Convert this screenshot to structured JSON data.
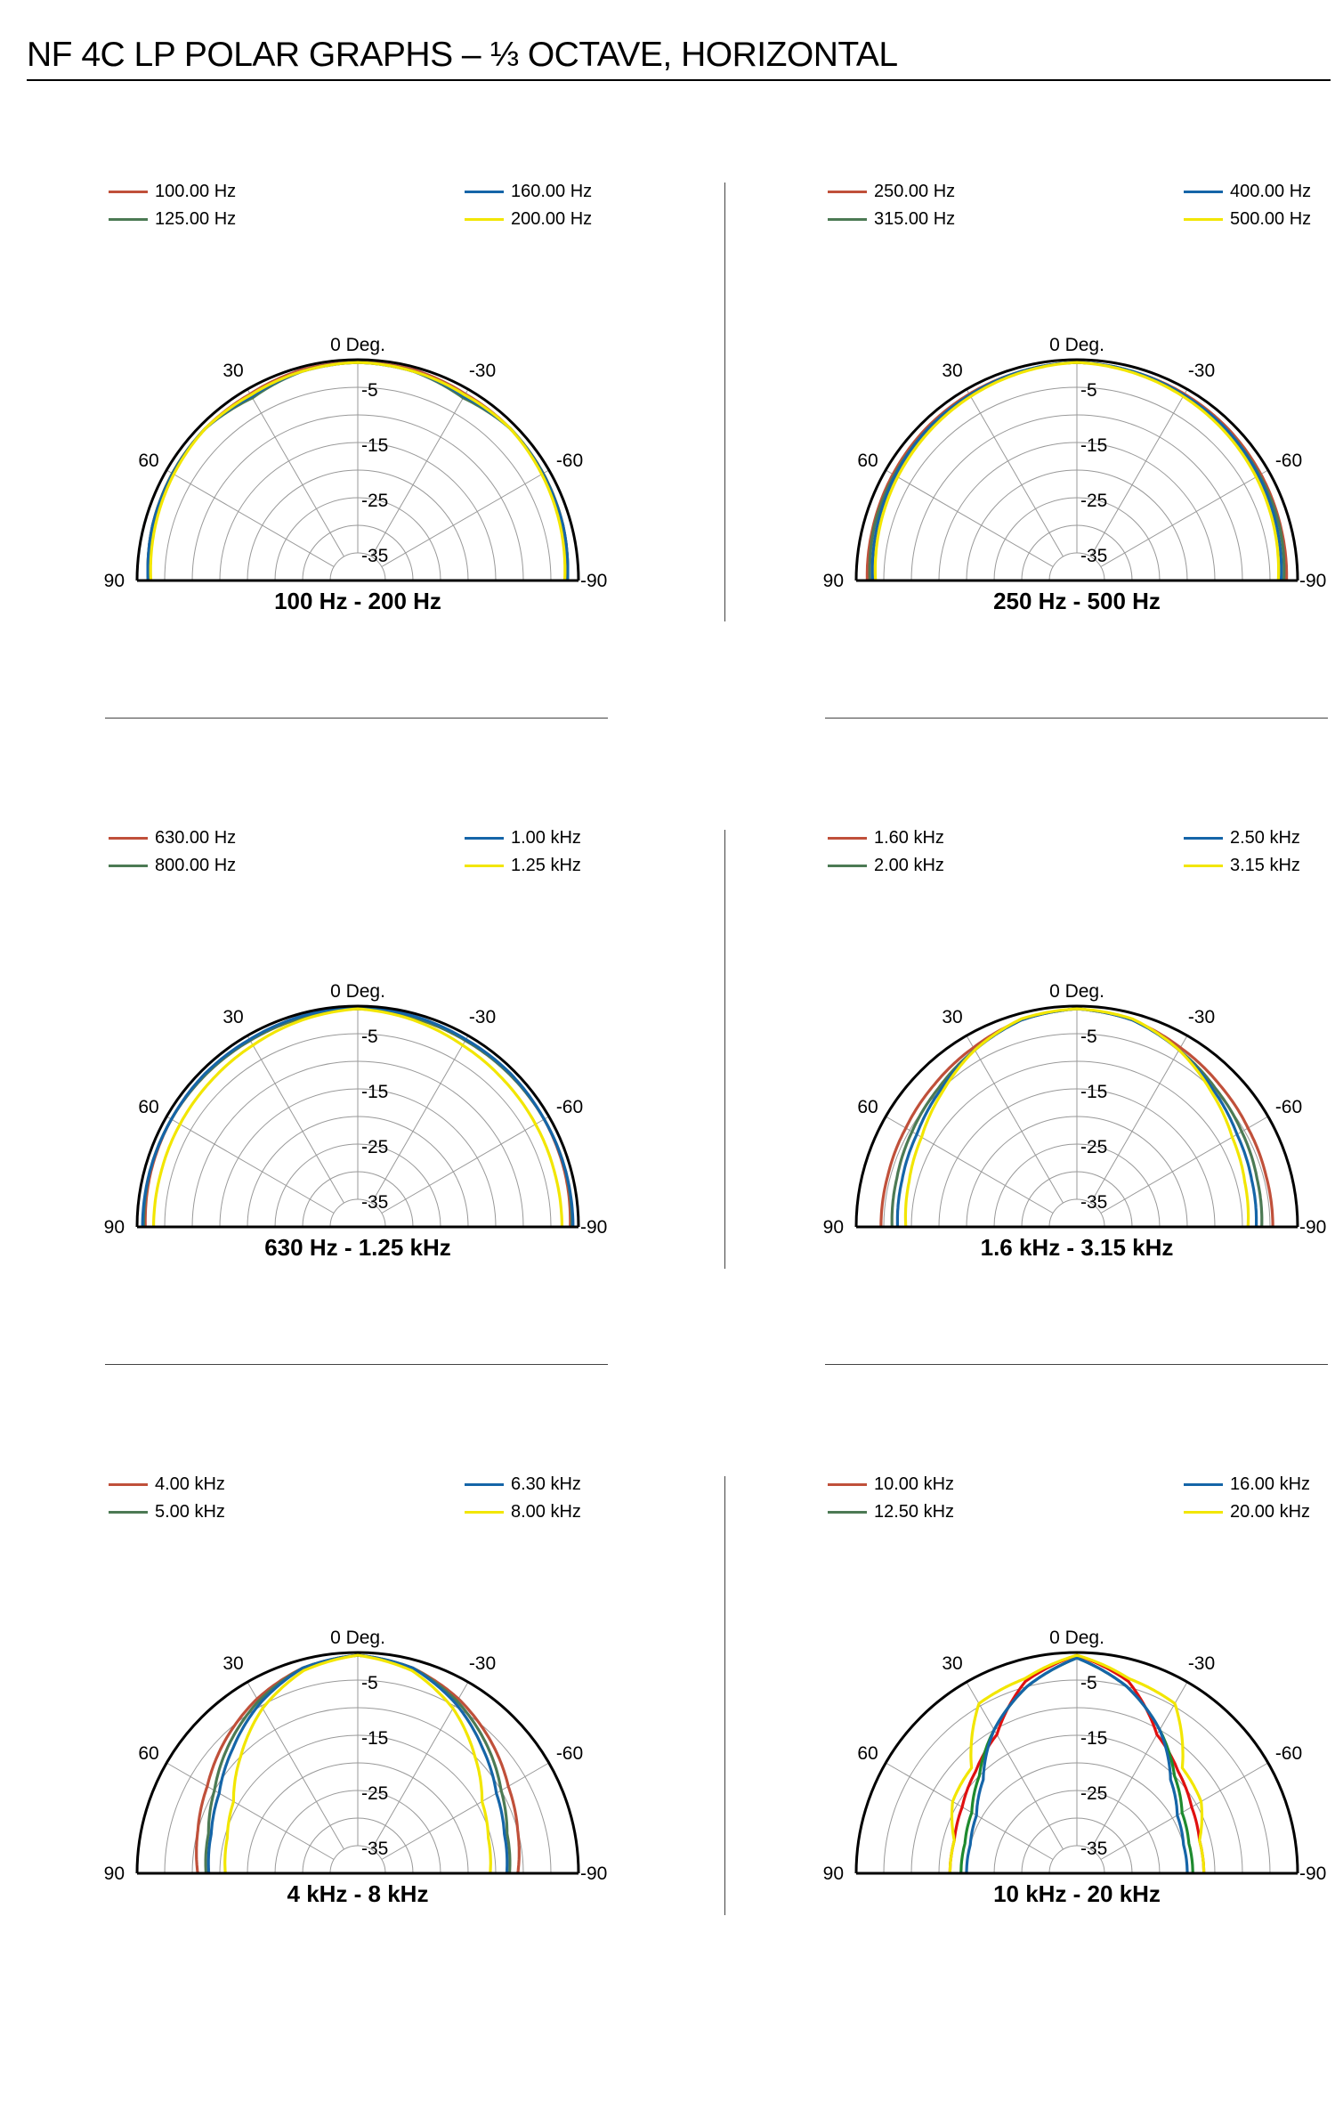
{
  "page": {
    "title": "NF 4C LP POLAR GRAPHS – ⅓ OCTAVE, HORIZONTAL"
  },
  "colors": {
    "series1": "#c0503a",
    "series2": "#4c7a54",
    "series3": "#1565a8",
    "series4": "#f2e600",
    "grid": "#999999",
    "outline": "#000000",
    "hf_red": "#e01010",
    "hf_green": "#1e8a2e"
  },
  "chart_data": [
    {
      "type": "polar",
      "subtitle": "100 Hz - 200 Hz",
      "angle_labels": {
        "top": "0 Deg.",
        "a30": "30",
        "am30": "-30",
        "a60": "60",
        "am60": "-60",
        "a90": "90",
        "am90": "-90"
      },
      "ring_labels": [
        "-5",
        "-15",
        "-25",
        "-35"
      ],
      "rlim": [
        -40,
        0
      ],
      "angles": [
        -90,
        -75,
        -60,
        -45,
        -30,
        -15,
        0,
        15,
        30,
        45,
        60,
        75,
        90
      ],
      "series": [
        {
          "name": "100.00 Hz",
          "values": [
            -2,
            -1.5,
            -1.2,
            -1,
            -1,
            -0.5,
            -0.5,
            -0.5,
            -1,
            -1,
            -1.2,
            -1.5,
            -2
          ]
        },
        {
          "name": "125.00 Hz",
          "values": [
            -2,
            -1.5,
            -1.2,
            -1,
            -1.8,
            -0.8,
            -0.5,
            -0.8,
            -1.8,
            -1,
            -1.2,
            -1.5,
            -2
          ]
        },
        {
          "name": "160.00 Hz",
          "values": [
            -2,
            -1.5,
            -1.3,
            -1,
            -1.5,
            -0.8,
            -0.5,
            -0.8,
            -1.5,
            -1,
            -1.3,
            -1.5,
            -2
          ]
        },
        {
          "name": "200.00 Hz",
          "values": [
            -2.5,
            -2,
            -1.5,
            -1,
            -1.2,
            -0.8,
            -0.5,
            -0.8,
            -1.2,
            -1,
            -1.5,
            -2,
            -2.5
          ]
        }
      ]
    },
    {
      "type": "polar",
      "subtitle": "250 Hz - 500 Hz",
      "angle_labels": {
        "top": "0 Deg.",
        "a30": "30",
        "am30": "-30",
        "a60": "60",
        "am60": "-60",
        "a90": "90",
        "am90": "-90"
      },
      "ring_labels": [
        "-5",
        "-15",
        "-25",
        "-35"
      ],
      "rlim": [
        -40,
        0
      ],
      "angles": [
        -90,
        -75,
        -60,
        -45,
        -30,
        -15,
        0,
        15,
        30,
        45,
        60,
        75,
        90
      ],
      "series": [
        {
          "name": "250.00 Hz",
          "values": [
            -2,
            -1.8,
            -1.5,
            -1.2,
            -1,
            -0.8,
            -0.5,
            -0.8,
            -1,
            -1.2,
            -1.5,
            -1.8,
            -2
          ]
        },
        {
          "name": "315.00 Hz",
          "values": [
            -2.5,
            -2,
            -1.8,
            -1.5,
            -1.2,
            -0.8,
            -0.5,
            -0.8,
            -1.2,
            -1.5,
            -1.8,
            -2,
            -2.5
          ]
        },
        {
          "name": "400.00 Hz",
          "values": [
            -3,
            -2.5,
            -2,
            -1.5,
            -1.2,
            -0.8,
            -0.5,
            -0.8,
            -1.2,
            -1.5,
            -2,
            -2.5,
            -3
          ]
        },
        {
          "name": "500.00 Hz",
          "values": [
            -3.5,
            -3,
            -2.5,
            -2,
            -1.5,
            -1,
            -0.5,
            -1,
            -1.5,
            -2,
            -2.5,
            -3,
            -3.5
          ]
        }
      ]
    },
    {
      "type": "polar",
      "subtitle": "630 Hz - 1.25 kHz",
      "angle_labels": {
        "top": "0 Deg.",
        "a30": "30",
        "am30": "-30",
        "a60": "60",
        "am60": "-60",
        "a90": "90",
        "am90": "-90"
      },
      "ring_labels": [
        "-5",
        "-15",
        "-25",
        "-35"
      ],
      "rlim": [
        -40,
        0
      ],
      "angles": [
        -90,
        -75,
        -60,
        -45,
        -30,
        -15,
        0,
        15,
        30,
        45,
        60,
        75,
        90
      ],
      "series": [
        {
          "name": "630.00 Hz",
          "values": [
            -1.5,
            -1.2,
            -1,
            -1,
            -1,
            -0.8,
            -0.5,
            -0.8,
            -1,
            -1,
            -1,
            -1.2,
            -1.5
          ]
        },
        {
          "name": "800.00 Hz",
          "values": [
            -1.2,
            -1,
            -1,
            -1,
            -1,
            -0.8,
            -0.5,
            -0.8,
            -1,
            -1,
            -1,
            -1,
            -1.2
          ]
        },
        {
          "name": "1.00 kHz",
          "values": [
            -1,
            -1,
            -1,
            -0.8,
            -0.8,
            -0.5,
            -0.3,
            -0.5,
            -0.8,
            -0.8,
            -1,
            -1,
            -1
          ]
        },
        {
          "name": "1.25 kHz",
          "values": [
            -3,
            -3,
            -2.8,
            -2.5,
            -2,
            -1.2,
            -0.5,
            -1.2,
            -2,
            -2.5,
            -2.8,
            -3,
            -3
          ]
        }
      ]
    },
    {
      "type": "polar",
      "subtitle": "1.6 kHz - 3.15 kHz",
      "angle_labels": {
        "top": "0 Deg.",
        "a30": "30",
        "am30": "-30",
        "a60": "60",
        "am60": "-60",
        "a90": "90",
        "am90": "-90"
      },
      "ring_labels": [
        "-5",
        "-15",
        "-25",
        "-35"
      ],
      "rlim": [
        -40,
        0
      ],
      "angles": [
        -90,
        -75,
        -60,
        -45,
        -30,
        -15,
        0,
        15,
        30,
        45,
        60,
        75,
        90
      ],
      "series": [
        {
          "name": "1.60 kHz",
          "values": [
            -4.5,
            -4.5,
            -4.2,
            -3.5,
            -2.5,
            -1.2,
            -0.5,
            -1.2,
            -2.5,
            -3.5,
            -4.2,
            -4.5,
            -4.5
          ]
        },
        {
          "name": "2.00 kHz",
          "values": [
            -6.5,
            -6.2,
            -5.5,
            -4.5,
            -3,
            -1.2,
            -0.5,
            -1.2,
            -3,
            -4.5,
            -5.5,
            -6.2,
            -6.5
          ]
        },
        {
          "name": "2.50 kHz",
          "values": [
            -7.5,
            -7.2,
            -6.5,
            -5,
            -3,
            -1.2,
            -0.5,
            -1.2,
            -3,
            -5,
            -6.5,
            -7.2,
            -7.5
          ]
        },
        {
          "name": "3.15 kHz",
          "values": [
            -9,
            -8.5,
            -7.5,
            -5.5,
            -3,
            -1,
            -0.5,
            -1,
            -3,
            -5.5,
            -7.5,
            -8.5,
            -9
          ]
        }
      ]
    },
    {
      "type": "polar",
      "subtitle": "4 kHz - 8 kHz",
      "angle_labels": {
        "top": "0 Deg.",
        "a30": "30",
        "am30": "-30",
        "a60": "60",
        "am60": "-60",
        "a90": "90",
        "am90": "-90"
      },
      "ring_labels": [
        "-5",
        "-15",
        "-25",
        "-35"
      ],
      "rlim": [
        -40,
        0
      ],
      "angles": [
        -90,
        -75,
        -60,
        -45,
        -30,
        -15,
        0,
        15,
        30,
        45,
        60,
        75,
        90
      ],
      "series": [
        {
          "name": "4.00 kHz",
          "values": [
            -11,
            -10,
            -8.5,
            -6,
            -3.5,
            -1.5,
            -0.5,
            -1.5,
            -3.5,
            -6,
            -8.5,
            -10,
            -11
          ]
        },
        {
          "name": "5.00 kHz",
          "values": [
            -12.5,
            -12,
            -10,
            -7,
            -4,
            -1.5,
            -0.5,
            -1.5,
            -4,
            -7,
            -10,
            -12,
            -12.5
          ]
        },
        {
          "name": "6.30 kHz",
          "values": [
            -13,
            -12.5,
            -11,
            -8,
            -4.5,
            -1.5,
            -0.5,
            -1.5,
            -4.5,
            -8,
            -11,
            -12.5,
            -13
          ]
        },
        {
          "name": "8.00 kHz",
          "values": [
            -16,
            -15.5,
            -14,
            -10,
            -5.5,
            -2,
            -0.5,
            -2,
            -5.5,
            -10,
            -14,
            -15.5,
            -16
          ]
        }
      ]
    },
    {
      "type": "polar",
      "subtitle": "10 kHz - 20 kHz",
      "angle_labels": {
        "top": "0 Deg.",
        "a30": "30",
        "am30": "-30",
        "a60": "60",
        "am60": "-60",
        "a90": "90",
        "am90": "-90"
      },
      "ring_labels": [
        "-5",
        "-15",
        "-25",
        "-35"
      ],
      "rlim": [
        -40,
        0
      ],
      "angles": [
        -90,
        -75,
        -60,
        -45,
        -30,
        -15,
        0,
        15,
        30,
        45,
        60,
        75,
        90
      ],
      "series": [
        {
          "name": "10.00 kHz",
          "values": [
            -17,
            -17,
            -16,
            -14,
            -11,
            -4,
            -0.5,
            -4,
            -11,
            -14,
            -16,
            -17,
            -17
          ]
        },
        {
          "name": "12.50 kHz",
          "values": [
            -19,
            -19,
            -18,
            -15,
            -10,
            -5,
            -1,
            -5,
            -10,
            -15,
            -18,
            -19,
            -19
          ]
        },
        {
          "name": "16.00 kHz",
          "values": [
            -20,
            -20,
            -19,
            -16,
            -10,
            -5,
            -1,
            -5,
            -10,
            -16,
            -19,
            -20,
            -20
          ]
        },
        {
          "name": "20.00 kHz",
          "values": [
            -17,
            -17,
            -14,
            -13,
            -4.5,
            -3.5,
            -0.5,
            -3.5,
            -4.5,
            -13,
            -14,
            -17,
            -17
          ]
        }
      ]
    }
  ]
}
